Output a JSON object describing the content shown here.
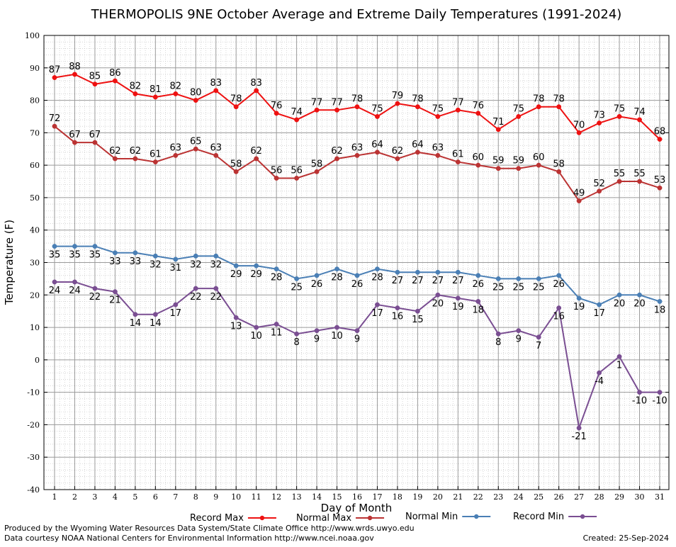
{
  "chart_data": {
    "type": "line",
    "title": "THERMOPOLIS 9NE October Average and Extreme Daily Temperatures (1991-2024)",
    "xlabel": "Day of Month",
    "ylabel": "Temperature (F)",
    "ylim": [
      -40,
      100
    ],
    "yticks": [
      -40,
      -30,
      -20,
      -10,
      0,
      10,
      20,
      30,
      40,
      50,
      60,
      70,
      80,
      90,
      100
    ],
    "x": [
      1,
      2,
      3,
      4,
      5,
      6,
      7,
      8,
      9,
      10,
      11,
      12,
      13,
      14,
      15,
      16,
      17,
      18,
      19,
      20,
      21,
      22,
      23,
      24,
      25,
      26,
      27,
      28,
      29,
      30,
      31
    ],
    "grid": true,
    "legend_position": "bottom",
    "series": [
      {
        "name": "Record Max",
        "color": "#ee1111",
        "label_position": "above",
        "values": [
          87,
          88,
          85,
          86,
          82,
          81,
          82,
          80,
          83,
          78,
          83,
          76,
          74,
          77,
          77,
          78,
          75,
          79,
          78,
          75,
          77,
          76,
          71,
          75,
          78,
          78,
          70,
          73,
          75,
          74,
          68
        ]
      },
      {
        "name": "Normal Max",
        "color": "#bb3333",
        "label_position": "above",
        "values": [
          72,
          67,
          67,
          62,
          62,
          61,
          63,
          65,
          63,
          58,
          62,
          56,
          56,
          58,
          62,
          63,
          64,
          62,
          64,
          63,
          61,
          60,
          59,
          59,
          60,
          58,
          49,
          52,
          55,
          55,
          53
        ]
      },
      {
        "name": "Normal Min",
        "color": "#4a7fb5",
        "label_position": "below",
        "values": [
          35,
          35,
          35,
          33,
          33,
          32,
          31,
          32,
          32,
          29,
          29,
          28,
          25,
          26,
          28,
          26,
          28,
          27,
          27,
          27,
          27,
          26,
          25,
          25,
          25,
          26,
          19,
          17,
          20,
          20,
          18
        ]
      },
      {
        "name": "Record Min",
        "color": "#7a4e92",
        "label_position": "below",
        "values": [
          24,
          24,
          22,
          21,
          14,
          14,
          17,
          22,
          22,
          13,
          10,
          11,
          8,
          9,
          10,
          9,
          17,
          16,
          15,
          20,
          19,
          18,
          8,
          9,
          7,
          16,
          -21,
          -4,
          1,
          -10,
          -10
        ]
      }
    ]
  },
  "footer": {
    "line1": "Produced by the Wyoming Water Resources Data System/State Climate Office http://www.wrds.uwyo.edu",
    "line2": "Data courtesy NOAA National Centers for Environmental Information http://www.ncei.noaa.gov",
    "created": "Created:  25-Sep-2024"
  }
}
